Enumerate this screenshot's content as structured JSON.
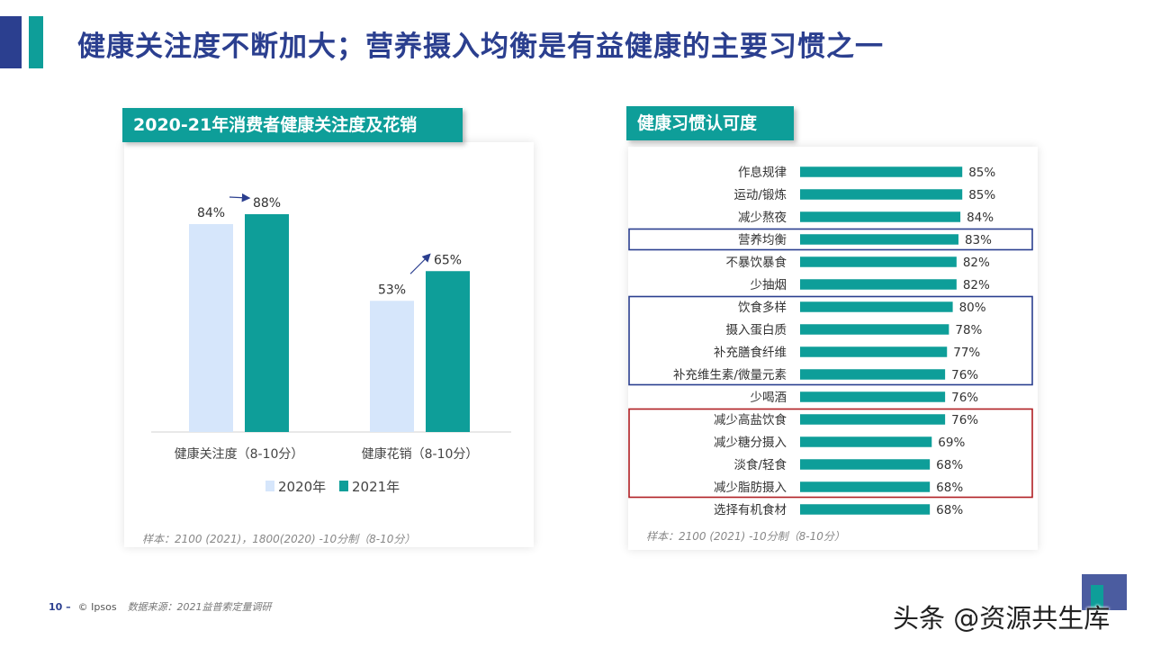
{
  "page": {
    "title": "健康关注度不断加大；营养摄入均衡是有益健康的主要习惯之一"
  },
  "left_panel": {
    "tag": "2020-21年消费者健康关注度及花销",
    "note": "样本：2100 (2021)，1800(2020) -10分制（8-10分）"
  },
  "right_panel": {
    "tag": "健康习惯认可度",
    "note": "样本：2100 (2021) -10分制（8-10分）"
  },
  "chart_data": [
    {
      "type": "bar",
      "title": "2020-21年消费者健康关注度及花销",
      "categories": [
        "健康关注度（8-10分）",
        "健康花销（8-10分）"
      ],
      "series": [
        {
          "name": "2020年",
          "values": [
            84,
            53
          ],
          "labels": [
            "84%",
            "53%"
          ],
          "color": "#d6e6fb"
        },
        {
          "name": "2021年",
          "values": [
            88,
            65
          ],
          "labels": [
            "88%",
            "65%"
          ],
          "color": "#0e9e99"
        }
      ],
      "ylim": [
        0,
        100
      ],
      "legend": "bottom"
    },
    {
      "type": "bar",
      "orientation": "horizontal",
      "title": "健康习惯认可度",
      "categories": [
        "作息规律",
        "运动/锻炼",
        "减少熬夜",
        "营养均衡",
        "不暴饮暴食",
        "少抽烟",
        "饮食多样",
        "摄入蛋白质",
        "补充膳食纤维",
        "补充维生素/微量元素",
        "少喝酒",
        "减少高盐饮食",
        "减少糖分摄入",
        "淡食/轻食",
        "减少脂肪摄入",
        "选择有机食材"
      ],
      "values": [
        85,
        85,
        84,
        83,
        82,
        82,
        80,
        78,
        77,
        76,
        76,
        76,
        69,
        68,
        68,
        68
      ],
      "labels": [
        "85%",
        "85%",
        "84%",
        "83%",
        "82%",
        "82%",
        "80%",
        "78%",
        "77%",
        "76%",
        "76%",
        "76%",
        "69%",
        "68%",
        "68%",
        "68%"
      ],
      "color": "#0e9e99",
      "highlight_groups": [
        {
          "rows": [
            3,
            3
          ],
          "color": "#2b3f8f"
        },
        {
          "rows": [
            6,
            9
          ],
          "color": "#2b3f8f"
        },
        {
          "rows": [
            11,
            14
          ],
          "color": "#b01e23"
        }
      ]
    }
  ],
  "footer": {
    "page_number": "10 –",
    "company": "© Ipsos",
    "source": "数据来源：2021益普索定量调研"
  },
  "watermark": "头条 @资源共生库",
  "colors": {
    "brand_blue": "#2b3f8f",
    "teal": "#0e9e99",
    "light_blue": "#d6e6fb",
    "highlight_red": "#b01e23"
  }
}
